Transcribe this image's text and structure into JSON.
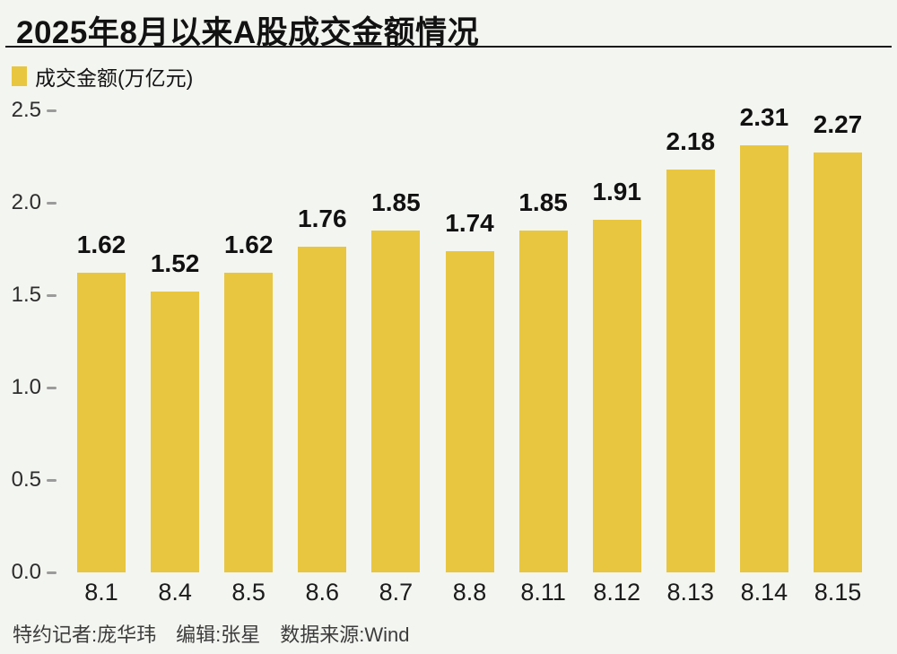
{
  "page": {
    "background": "#F3F5F0"
  },
  "header": {
    "title": "2025年8月以来A股成交金额情况"
  },
  "legend": {
    "swatch_color": "#E8C640",
    "label": "成交金额(万亿元)"
  },
  "footer": {
    "credits": "特约记者:庞华玮　编辑:张星　数据来源:Wind"
  },
  "chart_data": {
    "type": "bar",
    "title": "2025年8月以来A股成交金额情况",
    "series_name": "成交金额(万亿元)",
    "categories": [
      "8.1",
      "8.4",
      "8.5",
      "8.6",
      "8.7",
      "8.8",
      "8.11",
      "8.12",
      "8.13",
      "8.14",
      "8.15"
    ],
    "values": [
      1.62,
      1.52,
      1.62,
      1.76,
      1.85,
      1.74,
      1.85,
      1.91,
      2.18,
      2.31,
      2.27
    ],
    "value_labels": [
      "1.62",
      "1.52",
      "1.62",
      "1.76",
      "1.85",
      "1.74",
      "1.85",
      "1.91",
      "2.18",
      "2.31",
      "2.27"
    ],
    "xlabel": "",
    "ylabel": "成交金额(万亿元)",
    "ylim": [
      0,
      2.5
    ],
    "y_ticks": [
      "2.5",
      "2.0",
      "1.5",
      "1.0",
      "0.5",
      "0.0"
    ],
    "grid": false,
    "legend_position": "top-left",
    "value_labels_shown": true,
    "bar_color": "#E8C640",
    "source": "Wind"
  }
}
